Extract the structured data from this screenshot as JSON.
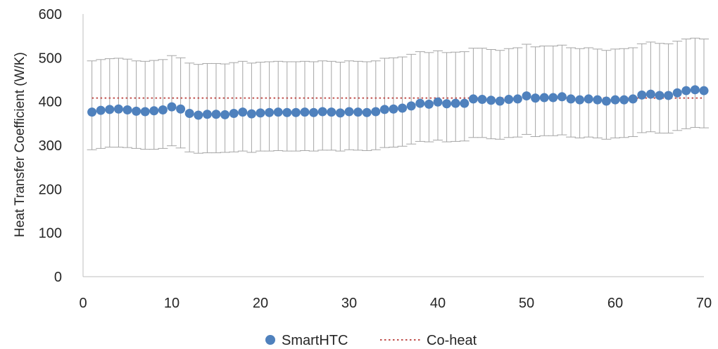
{
  "chart_data": {
    "type": "scatter",
    "title": "",
    "xlabel": "",
    "ylabel": "Heat Transfer Coefficient (W/K)",
    "xlim": [
      0,
      70
    ],
    "ylim": [
      0,
      600
    ],
    "x_ticks": [
      "0",
      "10",
      "20",
      "30",
      "40",
      "50",
      "60",
      "70"
    ],
    "y_ticks": [
      "0",
      "100",
      "200",
      "300",
      "400",
      "500",
      "600"
    ],
    "grid": false,
    "legend_position": "bottom",
    "series": [
      {
        "name": "SmartHTC",
        "kind": "points_with_error_bars",
        "color": "#4f81bd",
        "x": [
          1,
          2,
          3,
          4,
          5,
          6,
          7,
          8,
          9,
          10,
          11,
          12,
          13,
          14,
          15,
          16,
          17,
          18,
          19,
          20,
          21,
          22,
          23,
          24,
          25,
          26,
          27,
          28,
          29,
          30,
          31,
          32,
          33,
          34,
          35,
          36,
          37,
          38,
          39,
          40,
          41,
          42,
          43,
          44,
          45,
          46,
          47,
          48,
          49,
          50,
          51,
          52,
          53,
          54,
          55,
          56,
          57,
          58,
          59,
          60,
          61,
          62,
          63,
          64,
          65,
          66,
          67,
          68,
          69,
          70
        ],
        "y": [
          376,
          380,
          382,
          383,
          381,
          378,
          377,
          379,
          381,
          388,
          383,
          373,
          369,
          371,
          371,
          370,
          373,
          376,
          372,
          374,
          375,
          376,
          375,
          375,
          376,
          375,
          377,
          376,
          374,
          377,
          376,
          375,
          377,
          382,
          383,
          385,
          390,
          396,
          394,
          399,
          395,
          396,
          396,
          406,
          405,
          403,
          401,
          405,
          406,
          413,
          408,
          409,
          409,
          411,
          406,
          404,
          406,
          404,
          401,
          404,
          404,
          406,
          415,
          417,
          414,
          414,
          420,
          425,
          427,
          425
        ],
        "error_low": [
          290,
          293,
          296,
          296,
          295,
          293,
          291,
          291,
          293,
          299,
          294,
          285,
          282,
          283,
          283,
          284,
          285,
          287,
          284,
          287,
          287,
          288,
          287,
          287,
          288,
          287,
          289,
          289,
          287,
          290,
          289,
          288,
          290,
          295,
          296,
          298,
          303,
          309,
          308,
          312,
          308,
          309,
          310,
          318,
          318,
          315,
          314,
          318,
          319,
          325,
          320,
          322,
          322,
          324,
          319,
          317,
          319,
          317,
          314,
          317,
          318,
          320,
          329,
          331,
          328,
          328,
          334,
          338,
          341,
          340
        ],
        "error_high": [
          493,
          496,
          498,
          499,
          497,
          493,
          492,
          494,
          496,
          505,
          500,
          488,
          485,
          487,
          487,
          486,
          489,
          492,
          488,
          490,
          491,
          492,
          491,
          491,
          492,
          491,
          493,
          492,
          490,
          493,
          492,
          491,
          493,
          499,
          500,
          502,
          508,
          514,
          512,
          516,
          512,
          513,
          514,
          522,
          522,
          519,
          517,
          521,
          523,
          531,
          525,
          527,
          527,
          529,
          523,
          521,
          523,
          520,
          517,
          520,
          521,
          523,
          532,
          536,
          533,
          532,
          538,
          543,
          545,
          543
        ]
      },
      {
        "name": "Co-heat",
        "kind": "horizontal_reference_line",
        "color": "#c0504d",
        "y": 408
      }
    ]
  }
}
